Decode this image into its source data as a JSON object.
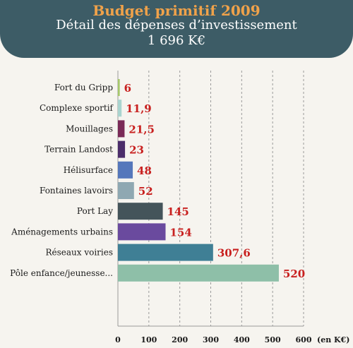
{
  "header": {
    "title": "Budget primitif 2009",
    "subtitle": "Détail des dépenses d’investissement",
    "total": "1 696 K€",
    "background_color": "#3d5c66",
    "title_color": "#f0a24a"
  },
  "chart_data": {
    "type": "bar",
    "orientation": "horizontal",
    "categories": [
      "Fort du Gripp",
      "Complexe sportif",
      "Mouillages",
      "Terrain Landost",
      "Hélisurface",
      "Fontaines lavoirs",
      "Port Lay",
      "Aménagements urbains",
      "Réseaux voiries",
      "Pôle enfance/jeunesse..."
    ],
    "values": [
      6,
      11.9,
      21.5,
      23,
      48,
      52,
      145,
      154,
      307.6,
      520
    ],
    "value_labels": [
      "6",
      "11,9",
      "21,5",
      "23",
      "48",
      "52",
      "145",
      "154",
      "307,6",
      "520"
    ],
    "colors": [
      "#a7c86a",
      "#a9d4cf",
      "#7a2a57",
      "#4b2d6a",
      "#5577bb",
      "#8fa8b2",
      "#44545a",
      "#6a4a9e",
      "#3f7f95",
      "#8ebfa8"
    ],
    "value_label_color": "#c8201f",
    "xlim": [
      0,
      600
    ],
    "xticks": [
      0,
      100,
      200,
      300,
      400,
      500,
      600
    ],
    "xtick_labels": [
      "0",
      "100",
      "200",
      "300",
      "400",
      "500",
      "600"
    ],
    "xunit": "(en K€)",
    "grid": "vertical dashed"
  }
}
